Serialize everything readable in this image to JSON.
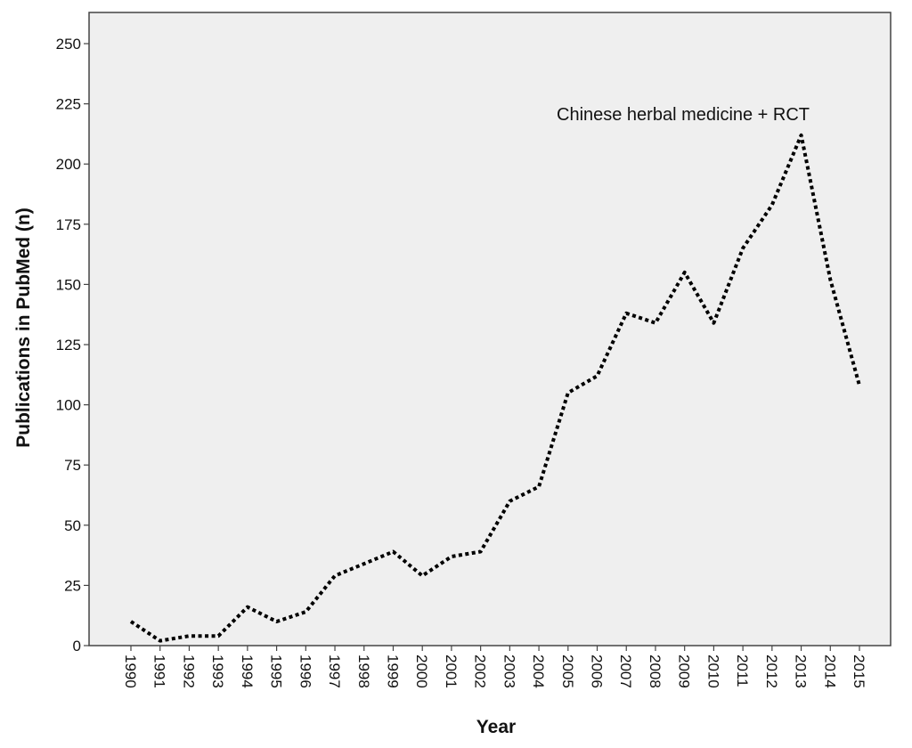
{
  "chart_data": {
    "type": "line",
    "xlabel": "Year",
    "ylabel": "Publications in PubMed (n)",
    "ylim": [
      0,
      250
    ],
    "y_ticks": [
      0,
      25,
      50,
      75,
      100,
      125,
      150,
      175,
      200,
      225,
      250
    ],
    "grid": false,
    "legend": "none",
    "annotation": "Chinese herbal medicine + RCT",
    "x": [
      "1990",
      "1991",
      "1992",
      "1993",
      "1994",
      "1995",
      "1996",
      "1997",
      "1998",
      "1999",
      "2000",
      "2001",
      "2002",
      "2003",
      "2004",
      "2005",
      "2006",
      "2007",
      "2008",
      "2009",
      "2010",
      "2011",
      "2012",
      "2013",
      "2014",
      "2015"
    ],
    "series": [
      {
        "values": [
          10,
          2,
          4,
          4,
          16,
          10,
          14,
          29,
          34,
          39,
          29,
          37,
          39,
          60,
          66,
          105,
          112,
          138,
          134,
          155,
          134,
          165,
          183,
          212,
          152,
          108
        ],
        "color": "#000000",
        "line_style": "dotted"
      }
    ]
  },
  "colors": {
    "plot_background": "#efefef",
    "axis": "#444444",
    "line": "#000000"
  }
}
